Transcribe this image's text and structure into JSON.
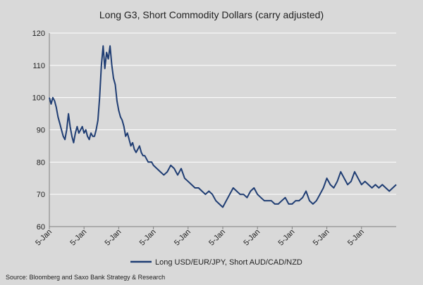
{
  "chart_data": {
    "type": "line",
    "title": "Long G3, Short Commodity Dollars (carry adjusted)",
    "xlabel": "",
    "ylabel": "",
    "ylim": [
      60,
      120
    ],
    "yticks": [
      60,
      70,
      80,
      90,
      100,
      110,
      120
    ],
    "grid": true,
    "legend_position": "bottom",
    "x_tick_labels": [
      "5-Jan",
      "5-Jan",
      "5-Jan",
      "5-Jan",
      "5-Jan",
      "5-Jan",
      "5-Jan",
      "5-Jan",
      "5-Jan",
      "5-Jan"
    ],
    "series": [
      {
        "name": "Long USD/EUR/JPY, Short AUD/CAD/NZD",
        "color": "#1f3d73",
        "x": [
          0,
          0.05,
          0.1,
          0.15,
          0.2,
          0.25,
          0.3,
          0.35,
          0.4,
          0.45,
          0.5,
          0.55,
          0.6,
          0.65,
          0.7,
          0.75,
          0.8,
          0.85,
          0.9,
          0.95,
          1.0,
          1.05,
          1.1,
          1.15,
          1.2,
          1.25,
          1.3,
          1.35,
          1.4,
          1.45,
          1.5,
          1.55,
          1.6,
          1.65,
          1.7,
          1.75,
          1.8,
          1.85,
          1.9,
          1.95,
          2.0,
          2.05,
          2.1,
          2.15,
          2.2,
          2.25,
          2.3,
          2.35,
          2.4,
          2.45,
          2.5,
          2.55,
          2.6,
          2.65,
          2.7,
          2.75,
          2.8,
          2.85,
          2.9,
          2.95,
          3.0,
          3.1,
          3.2,
          3.3,
          3.4,
          3.5,
          3.6,
          3.7,
          3.8,
          3.9,
          4.0,
          4.1,
          4.2,
          4.3,
          4.4,
          4.5,
          4.6,
          4.7,
          4.8,
          4.9,
          5.0,
          5.1,
          5.2,
          5.3,
          5.4,
          5.5,
          5.6,
          5.7,
          5.8,
          5.9,
          6.0,
          6.1,
          6.2,
          6.3,
          6.4,
          6.5,
          6.6,
          6.7,
          6.8,
          6.9,
          7.0,
          7.1,
          7.2,
          7.3,
          7.4,
          7.5,
          7.6,
          7.7,
          7.8,
          7.9,
          8.0,
          8.1,
          8.2,
          8.3,
          8.4,
          8.5,
          8.6,
          8.7,
          8.8,
          8.9,
          9.0,
          9.1,
          9.2,
          9.3,
          9.4,
          9.5,
          9.6,
          9.7,
          9.8,
          9.9,
          10.0
        ],
        "values": [
          100,
          98,
          100,
          99,
          97,
          94,
          92,
          90,
          88,
          87,
          90,
          95,
          91,
          88,
          86,
          89,
          91,
          89,
          90,
          91,
          89,
          90,
          88,
          87,
          89,
          88,
          88,
          90,
          93,
          100,
          110,
          116,
          109,
          114,
          112,
          116,
          110,
          106,
          104,
          99,
          96,
          94,
          93,
          91,
          88,
          89,
          87,
          85,
          86,
          84,
          83,
          84,
          85,
          83,
          82,
          82,
          81,
          80,
          80,
          80,
          79,
          78,
          77,
          76,
          77,
          79,
          78,
          76,
          78,
          75,
          74,
          73,
          72,
          72,
          71,
          70,
          71,
          70,
          68,
          67,
          66,
          68,
          70,
          72,
          71,
          70,
          70,
          69,
          71,
          72,
          70,
          69,
          68,
          68,
          68,
          67,
          67,
          68,
          69,
          67,
          67,
          68,
          68,
          69,
          71,
          68,
          67,
          68,
          70,
          72,
          75,
          73,
          72,
          74,
          77,
          75,
          73,
          74,
          77,
          75,
          73,
          74,
          73,
          72,
          73,
          72,
          73,
          72,
          71,
          72,
          73
        ]
      }
    ]
  },
  "source": "Source: Bloomberg and Saxo Bank Strategy & Research"
}
